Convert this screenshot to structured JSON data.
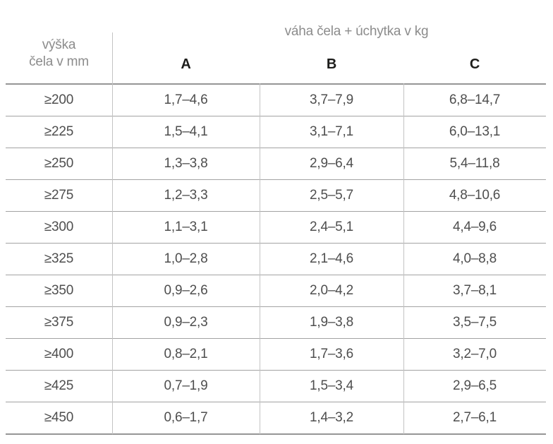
{
  "table": {
    "group_title": "váha čela + úchytka v kg",
    "row_header_line1": "výška",
    "row_header_line2": "čela v mm",
    "columns": [
      "A",
      "B",
      "C"
    ],
    "rows": [
      {
        "height": "≥200",
        "a": "1,7–4,6",
        "b": "3,7–7,9",
        "c": "6,8–14,7"
      },
      {
        "height": "≥225",
        "a": "1,5–4,1",
        "b": "3,1–7,1",
        "c": "6,0–13,1"
      },
      {
        "height": "≥250",
        "a": "1,3–3,8",
        "b": "2,9–6,4",
        "c": "5,4–11,8"
      },
      {
        "height": "≥275",
        "a": "1,2–3,3",
        "b": "2,5–5,7",
        "c": "4,8–10,6"
      },
      {
        "height": "≥300",
        "a": "1,1–3,1",
        "b": "2,4–5,1",
        "c": "4,4–9,6"
      },
      {
        "height": "≥325",
        "a": "1,0–2,8",
        "b": "2,1–4,6",
        "c": "4,0–8,8"
      },
      {
        "height": "≥350",
        "a": "0,9–2,6",
        "b": "2,0–4,2",
        "c": "3,7–8,1"
      },
      {
        "height": "≥375",
        "a": "0,9–2,3",
        "b": "1,9–3,8",
        "c": "3,5–7,5"
      },
      {
        "height": "≥400",
        "a": "0,8–2,1",
        "b": "1,7–3,6",
        "c": "3,2–7,0"
      },
      {
        "height": "≥425",
        "a": "0,7–1,9",
        "b": "1,5–3,4",
        "c": "2,9–6,5"
      },
      {
        "height": "≥450",
        "a": "0,6–1,7",
        "b": "1,4–3,2",
        "c": "2,7–6,1"
      }
    ],
    "colors": {
      "header_text": "#8c8c8c",
      "column_letter_text": "#1d1d1b",
      "body_text": "#4e4e4e",
      "outer_line": "#969696",
      "row_line": "#a3a3a3",
      "column_line": "#c3c3c3",
      "background": "#ffffff"
    }
  }
}
